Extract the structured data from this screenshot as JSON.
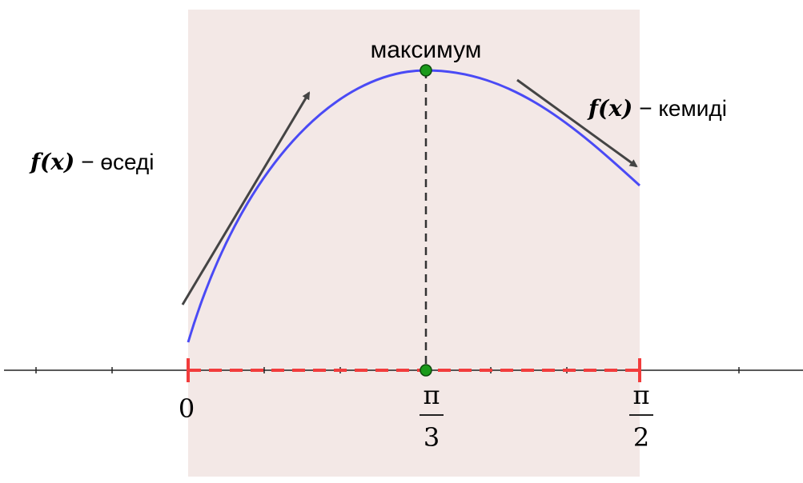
{
  "annotations": {
    "maximum": "максимум",
    "increasing": {
      "function": "f(x)",
      "text": "− өседі"
    },
    "decreasing": {
      "function": "f(x)",
      "text": "− кемиді"
    }
  },
  "axis_labels": {
    "zero": "0",
    "pi_over_3": {
      "numerator": "π",
      "denominator": "3"
    },
    "pi_over_2": {
      "numerator": "π",
      "denominator": "2"
    }
  }
}
